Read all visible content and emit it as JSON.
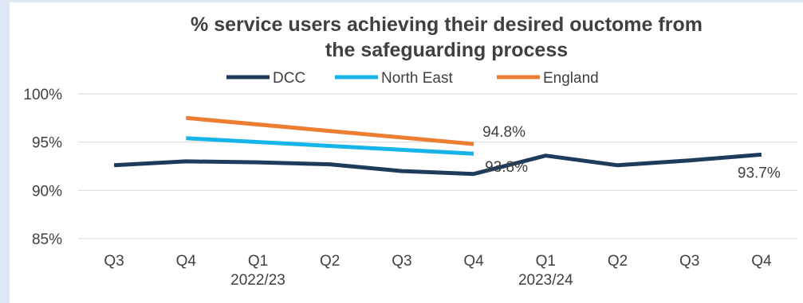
{
  "chart_data": {
    "type": "line",
    "title_line1": "%  service users achieving their desired ouctome from",
    "title_line2": "the safeguarding process",
    "categories": [
      "Q3",
      "Q4",
      "Q1",
      "Q2",
      "Q3",
      "Q4",
      "Q1",
      "Q2",
      "Q3",
      "Q4"
    ],
    "year_labels": [
      {
        "label": "2022/23",
        "category_index": 2
      },
      {
        "label": "2023/24",
        "category_index": 6
      }
    ],
    "ylim": [
      85,
      100
    ],
    "yticks": [
      {
        "value": 85,
        "label": "85%"
      },
      {
        "value": 90,
        "label": "90%"
      },
      {
        "value": 95,
        "label": "95%"
      },
      {
        "value": 100,
        "label": "100%"
      }
    ],
    "grid": true,
    "legend_position": "top",
    "series": [
      {
        "name": "DCC",
        "color": "#1f3b5c",
        "values": [
          92.6,
          93.0,
          92.9,
          92.7,
          92.0,
          91.7,
          93.6,
          92.6,
          93.1,
          93.7
        ],
        "end_label": "93.7%"
      },
      {
        "name": "North East",
        "color": "#17b4ea",
        "values": [
          null,
          95.4,
          null,
          null,
          null,
          93.8,
          null,
          null,
          null,
          null
        ],
        "end_label": "93.8%"
      },
      {
        "name": "England",
        "color": "#ed7d31",
        "values": [
          null,
          97.5,
          null,
          null,
          null,
          94.8,
          null,
          null,
          null,
          null
        ],
        "end_label": "94.8%"
      }
    ]
  }
}
